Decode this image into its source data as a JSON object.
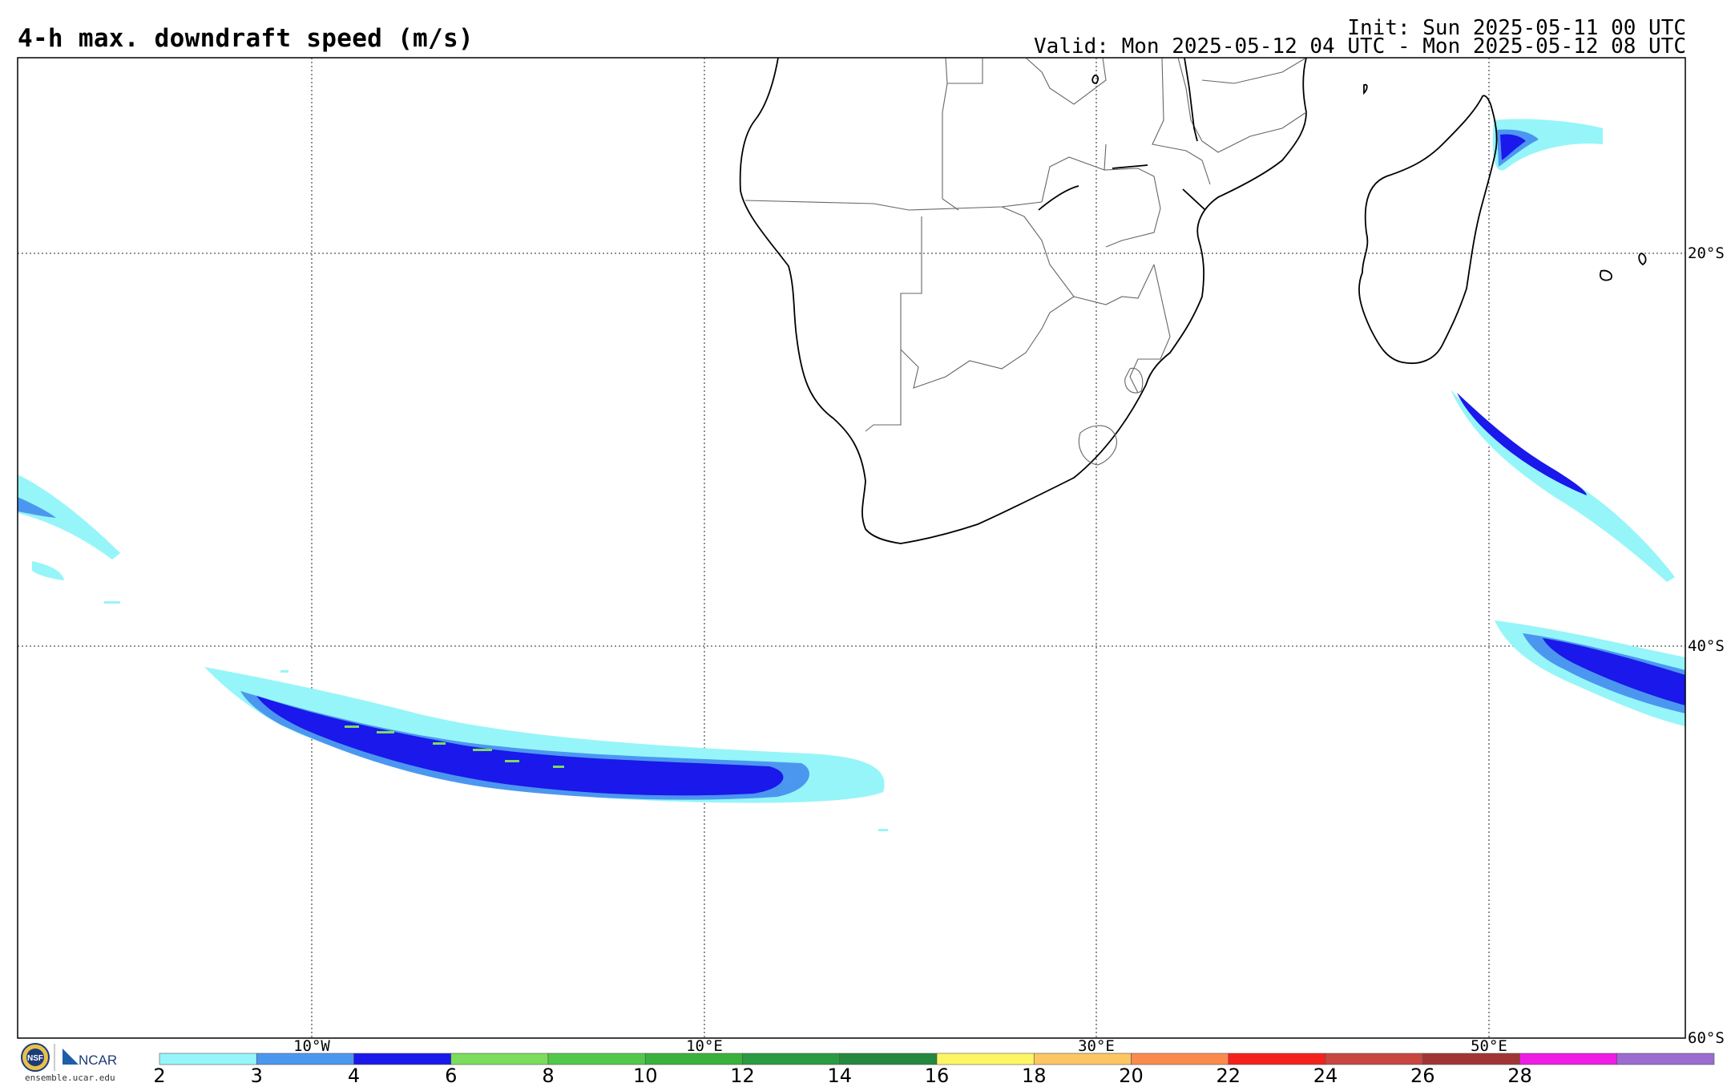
{
  "header": {
    "title": "4-h max. downdraft speed (m/s)",
    "init": "Init: Sun 2025-05-11 00 UTC",
    "valid": "Valid: Mon 2025-05-12 04 UTC - Mon 2025-05-12 08 UTC"
  },
  "map": {
    "region": "Southern Africa and South Atlantic / Indian Ocean",
    "graticule": "dotted",
    "longitude_labels": [
      "10°W",
      "10°E",
      "30°E",
      "50°E"
    ],
    "latitude_labels": [
      "20°S",
      "40°S",
      "60°S"
    ]
  },
  "colorbar": {
    "ticks": [
      "2",
      "3",
      "4",
      "6",
      "8",
      "10",
      "12",
      "14",
      "16",
      "18",
      "20",
      "22",
      "24",
      "26",
      "28"
    ],
    "colors": [
      "#96f5f8",
      "#4b97f0",
      "#1a18ea",
      "#7cdc5c",
      "#52c84a",
      "#3ab13d",
      "#2a9b41",
      "#24883e",
      "#fdf664",
      "#fcc663",
      "#fb8a4d",
      "#f5211d",
      "#c84540",
      "#a13535",
      "#ef1ce3",
      "#9b6bd0"
    ]
  },
  "logo": {
    "org_text": "NCAR",
    "seal_text": "NSF",
    "url": "ensemble.ucar.edu"
  }
}
